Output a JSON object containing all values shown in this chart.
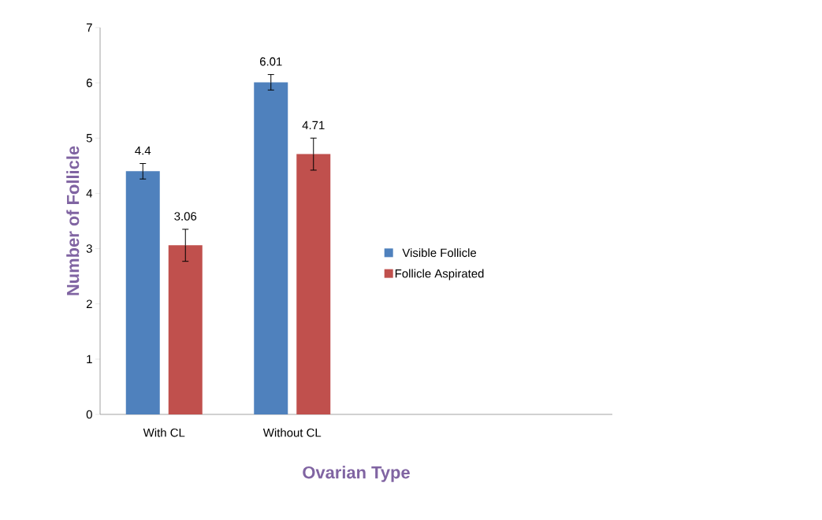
{
  "chart_data": {
    "type": "bar",
    "xlabel": "Ovarian Type",
    "ylabel": "Number of Follicle",
    "categories": [
      "With CL",
      "Without CL",
      null,
      null
    ],
    "series": [
      {
        "name": "Visible Follicle",
        "color": "#4f81bd",
        "values": [
          4.4,
          6.01,
          null,
          null
        ],
        "errors": [
          0.14,
          0.14,
          null,
          null
        ]
      },
      {
        "name": "Follicle Aspirated",
        "color": "#c0504d",
        "values": [
          3.06,
          4.71,
          null,
          null
        ],
        "errors": [
          0.29,
          0.29,
          null,
          null
        ]
      }
    ],
    "ylim": [
      0,
      7
    ],
    "yticks": [
      0,
      1,
      2,
      3,
      4,
      5,
      6,
      7
    ],
    "data_labels": true,
    "grid": false,
    "legend": "right"
  }
}
